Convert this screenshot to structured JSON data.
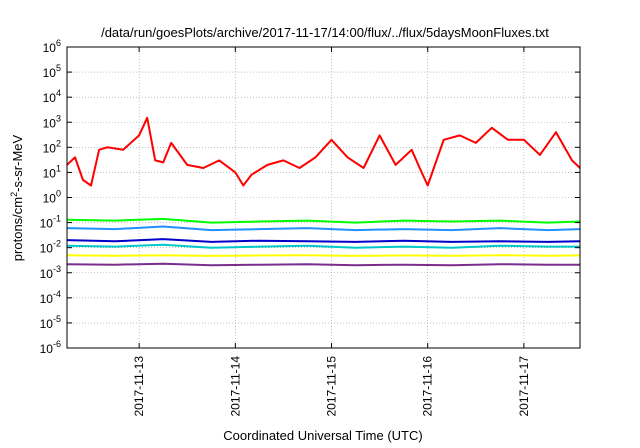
{
  "chart_data": {
    "type": "line",
    "title": "/data/run/goesPlots/archive/2017-11-17/14:00/flux/../flux/5daysMoonFluxes.txt",
    "xlabel": "Coordinated Universal Time (UTC)",
    "ylabel_parts": {
      "base": "protons/cm",
      "sup": "2",
      "rest": "-s-sr-MeV"
    },
    "y_scale": "log",
    "ylim": [
      1e-06,
      1000000.0
    ],
    "xlim": [
      "2017-11-12T06:00",
      "2017-11-17T14:00"
    ],
    "grid": true,
    "y_ticks": [
      {
        "base": "10",
        "exp": "-6"
      },
      {
        "base": "10",
        "exp": "-5"
      },
      {
        "base": "10",
        "exp": "-4"
      },
      {
        "base": "10",
        "exp": "-3"
      },
      {
        "base": "10",
        "exp": "-2"
      },
      {
        "base": "10",
        "exp": "-1"
      },
      {
        "base": "10",
        "exp": "0"
      },
      {
        "base": "10",
        "exp": "1"
      },
      {
        "base": "10",
        "exp": "2"
      },
      {
        "base": "10",
        "exp": "3"
      },
      {
        "base": "10",
        "exp": "4"
      },
      {
        "base": "10",
        "exp": "5"
      },
      {
        "base": "10",
        "exp": "6"
      }
    ],
    "x_ticks": [
      {
        "label": "2017-11-13",
        "value": "2017-11-13T00:00"
      },
      {
        "label": "2017-11-14",
        "value": "2017-11-14T00:00"
      },
      {
        "label": "2017-11-15",
        "value": "2017-11-15T00:00"
      },
      {
        "label": "2017-11-16",
        "value": "2017-11-16T00:00"
      },
      {
        "label": "2017-11-17",
        "value": "2017-11-17T00:00"
      }
    ],
    "series": [
      {
        "color": "#ff0000",
        "x": [
          "2017-11-12T06:00",
          "2017-11-12T08:00",
          "2017-11-12T10:00",
          "2017-11-12T12:00",
          "2017-11-12T14:00",
          "2017-11-12T16:00",
          "2017-11-12T20:00",
          "2017-11-13T00:00",
          "2017-11-13T02:00",
          "2017-11-13T04:00",
          "2017-11-13T06:00",
          "2017-11-13T08:00",
          "2017-11-13T12:00",
          "2017-11-13T16:00",
          "2017-11-13T20:00",
          "2017-11-14T00:00",
          "2017-11-14T02:00",
          "2017-11-14T04:00",
          "2017-11-14T08:00",
          "2017-11-14T12:00",
          "2017-11-14T16:00",
          "2017-11-14T20:00",
          "2017-11-15T00:00",
          "2017-11-15T04:00",
          "2017-11-15T08:00",
          "2017-11-15T12:00",
          "2017-11-15T16:00",
          "2017-11-15T20:00",
          "2017-11-15T22:00",
          "2017-11-16T00:00",
          "2017-11-16T04:00",
          "2017-11-16T08:00",
          "2017-11-16T12:00",
          "2017-11-16T16:00",
          "2017-11-16T20:00",
          "2017-11-17T00:00",
          "2017-11-17T04:00",
          "2017-11-17T08:00",
          "2017-11-17T12:00",
          "2017-11-17T14:00"
        ],
        "y": [
          20,
          40,
          5,
          3,
          80,
          100,
          80,
          300,
          1500,
          30,
          25,
          150,
          20,
          15,
          30,
          10,
          3,
          8,
          20,
          30,
          15,
          40,
          200,
          40,
          15,
          300,
          20,
          80,
          15,
          3,
          200,
          300,
          150,
          600,
          200,
          200,
          50,
          400,
          30,
          15
        ]
      },
      {
        "color": "#00ff00",
        "x": [
          "2017-11-12T06:00",
          "2017-11-12T18:00",
          "2017-11-13T06:00",
          "2017-11-13T18:00",
          "2017-11-14T06:00",
          "2017-11-14T18:00",
          "2017-11-15T06:00",
          "2017-11-15T18:00",
          "2017-11-16T06:00",
          "2017-11-16T18:00",
          "2017-11-17T06:00",
          "2017-11-17T14:00"
        ],
        "y": [
          0.13,
          0.12,
          0.14,
          0.1,
          0.11,
          0.12,
          0.1,
          0.12,
          0.11,
          0.12,
          0.1,
          0.11
        ]
      },
      {
        "color": "#1e90ff",
        "x": [
          "2017-11-12T06:00",
          "2017-11-12T18:00",
          "2017-11-13T06:00",
          "2017-11-13T18:00",
          "2017-11-14T06:00",
          "2017-11-14T18:00",
          "2017-11-15T06:00",
          "2017-11-15T18:00",
          "2017-11-16T06:00",
          "2017-11-16T18:00",
          "2017-11-17T06:00",
          "2017-11-17T14:00"
        ],
        "y": [
          0.06,
          0.055,
          0.07,
          0.05,
          0.055,
          0.06,
          0.05,
          0.055,
          0.05,
          0.06,
          0.05,
          0.055
        ]
      },
      {
        "color": "#00c8c8",
        "x": [
          "2017-11-12T06:00",
          "2017-11-12T18:00",
          "2017-11-13T06:00",
          "2017-11-13T18:00",
          "2017-11-14T06:00",
          "2017-11-14T18:00",
          "2017-11-15T06:00",
          "2017-11-15T18:00",
          "2017-11-16T06:00",
          "2017-11-16T18:00",
          "2017-11-17T06:00",
          "2017-11-17T14:00"
        ],
        "y": [
          0.012,
          0.011,
          0.013,
          0.01,
          0.011,
          0.012,
          0.01,
          0.011,
          0.01,
          0.012,
          0.011,
          0.011
        ]
      },
      {
        "color": "#0000c8",
        "x": [
          "2017-11-12T06:00",
          "2017-11-12T18:00",
          "2017-11-13T06:00",
          "2017-11-13T18:00",
          "2017-11-14T06:00",
          "2017-11-14T18:00",
          "2017-11-15T06:00",
          "2017-11-15T18:00",
          "2017-11-16T06:00",
          "2017-11-16T18:00",
          "2017-11-17T06:00",
          "2017-11-17T14:00"
        ],
        "y": [
          0.02,
          0.018,
          0.022,
          0.017,
          0.019,
          0.018,
          0.017,
          0.019,
          0.017,
          0.018,
          0.017,
          0.018
        ]
      },
      {
        "color": "#ffff00",
        "x": [
          "2017-11-12T06:00",
          "2017-11-12T18:00",
          "2017-11-13T06:00",
          "2017-11-13T18:00",
          "2017-11-14T06:00",
          "2017-11-14T18:00",
          "2017-11-15T06:00",
          "2017-11-15T18:00",
          "2017-11-16T06:00",
          "2017-11-16T18:00",
          "2017-11-17T06:00",
          "2017-11-17T14:00"
        ],
        "y": [
          0.005,
          0.0048,
          0.005,
          0.0047,
          0.0049,
          0.005,
          0.0047,
          0.0049,
          0.0048,
          0.005,
          0.0048,
          0.0049
        ]
      },
      {
        "color": "#7b2d8e",
        "x": [
          "2017-11-12T06:00",
          "2017-11-12T18:00",
          "2017-11-13T06:00",
          "2017-11-13T18:00",
          "2017-11-14T06:00",
          "2017-11-14T18:00",
          "2017-11-15T06:00",
          "2017-11-15T18:00",
          "2017-11-16T06:00",
          "2017-11-16T18:00",
          "2017-11-17T06:00",
          "2017-11-17T14:00"
        ],
        "y": [
          0.0022,
          0.0021,
          0.0023,
          0.002,
          0.0021,
          0.0022,
          0.002,
          0.0021,
          0.002,
          0.0022,
          0.0021,
          0.0021
        ]
      }
    ]
  }
}
